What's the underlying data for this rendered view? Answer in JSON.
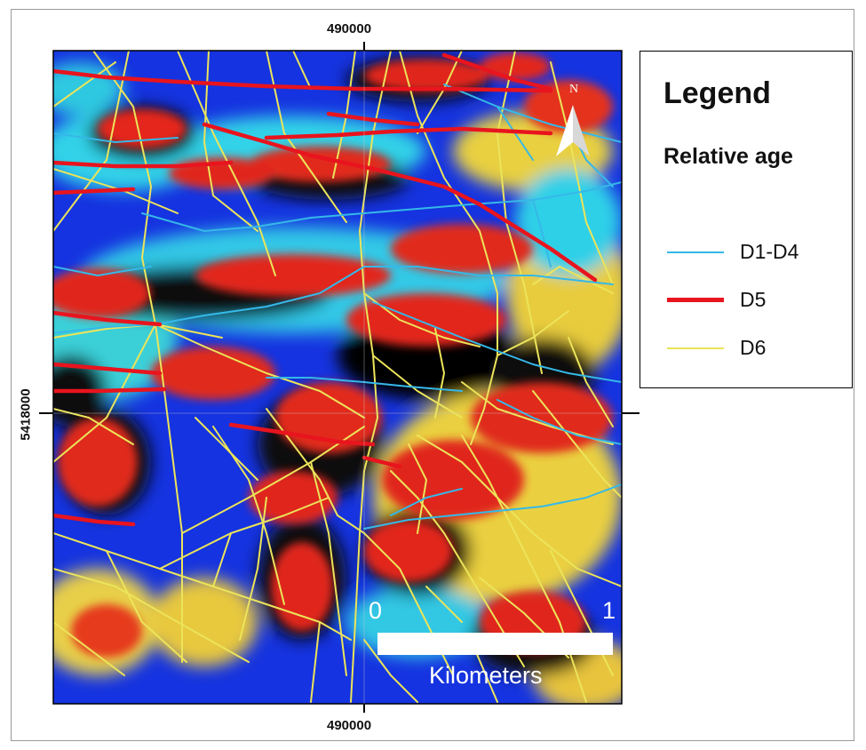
{
  "map": {
    "coord_top": "490000",
    "coord_bottom": "490000",
    "coord_left": "5418000",
    "north_label": "N"
  },
  "legend": {
    "title": "Legend",
    "subtitle": "Relative age",
    "items": [
      {
        "label": "D1-D4",
        "color": "#35b8e8"
      },
      {
        "label": "D5",
        "color": "#e8141e"
      },
      {
        "label": "D6",
        "color": "#ece45a"
      }
    ]
  },
  "scalebar": {
    "start_label": "0",
    "end_label": "1",
    "unit_label": "Kilometers"
  },
  "colors": {
    "lineament_d1_d4": "#35b8e8",
    "lineament_d5": "#e8141e",
    "lineament_d6": "#ece45a"
  }
}
